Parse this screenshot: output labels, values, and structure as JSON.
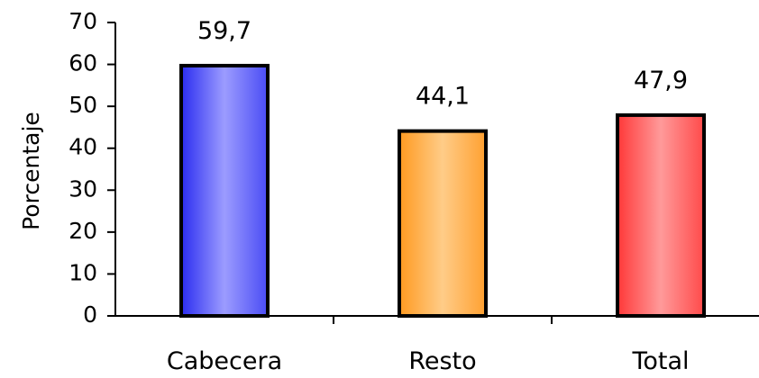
{
  "chart_data": {
    "type": "bar",
    "title": "",
    "xlabel": "",
    "ylabel": "Porcentaje",
    "ylim": [
      0,
      70
    ],
    "yticks": [
      0,
      10,
      20,
      30,
      40,
      50,
      60,
      70
    ],
    "grid": false,
    "categories": [
      "Cabecera",
      "Resto",
      "Total"
    ],
    "values": [
      59.7,
      44.1,
      47.9
    ],
    "data_labels": [
      "59,7",
      "44,1",
      "47,9"
    ],
    "colors": [
      "#5a5cf6",
      "#ffa83c",
      "#ff5a5c"
    ]
  }
}
